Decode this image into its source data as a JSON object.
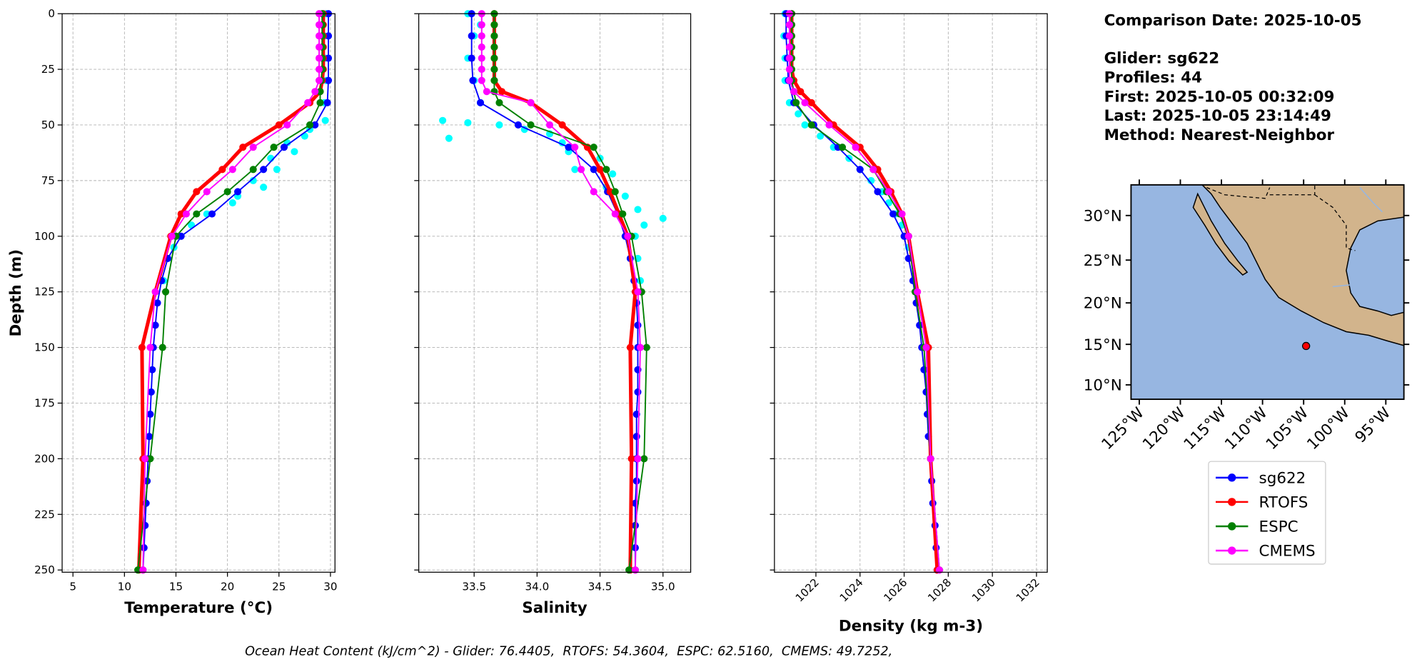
{
  "figure": {
    "comparison": "Comparison Date: 2025-10-05",
    "info_lines": [
      "Glider: sg622",
      "Profiles: 44",
      "First: 2025-10-05 00:32:09",
      "Last: 2025-10-05 23:14:49",
      "Method: Nearest-Neighbor"
    ],
    "footer": "Ocean Heat Content (kJ/cm^2) - Glider: 76.4405,  RTOFS: 54.3604,  ESPC: 62.5160,  CMEMS: 49.7252,"
  },
  "chart_data": [
    {
      "type": "line",
      "x_label": "Temperature (°C)",
      "y_label": "Depth (m)",
      "grid": true,
      "show_ytick_labels": true,
      "xlim": [
        3.95,
        30.44
      ],
      "xticks": [
        5,
        10,
        15,
        20,
        25,
        30
      ],
      "ylim": [
        0,
        251
      ],
      "yticks": [
        0,
        25,
        50,
        75,
        100,
        125,
        150,
        175,
        200,
        225,
        250
      ],
      "series": [
        {
          "type": "scatter",
          "color": "#00ffff",
          "y": [
            0,
            10,
            20,
            30,
            40,
            48,
            52,
            55,
            58,
            62,
            65,
            70,
            75,
            78,
            82,
            85,
            90,
            95,
            100,
            105,
            110,
            120
          ],
          "values": [
            29.6,
            29.4,
            29.5,
            29.6,
            29.4,
            29.5,
            28.0,
            27.5,
            25.8,
            26.5,
            24.2,
            24.8,
            22.5,
            23.5,
            21.0,
            20.5,
            18.0,
            16.5,
            15.0,
            14.8,
            14.2,
            13.8
          ]
        },
        {
          "name": "sg622",
          "color": "#0000ff",
          "width": 1.5,
          "y": [
            0,
            10,
            20,
            30,
            40,
            50,
            60,
            70,
            80,
            90,
            100,
            110,
            120,
            130,
            140,
            150,
            160,
            170,
            180,
            190,
            200,
            210,
            220,
            230,
            240,
            250
          ],
          "values": [
            29.8,
            29.8,
            29.8,
            29.8,
            29.7,
            28.5,
            25.5,
            23.5,
            21.0,
            18.5,
            15.5,
            14.2,
            13.6,
            13.2,
            13.0,
            12.8,
            12.7,
            12.6,
            12.5,
            12.4,
            12.3,
            12.2,
            12.1,
            12.0,
            11.9,
            11.8
          ]
        },
        {
          "name": "RTOFS",
          "color": "#ff0000",
          "width": 4,
          "y": [
            0,
            5,
            10,
            15,
            20,
            25,
            30,
            35,
            40,
            50,
            60,
            70,
            80,
            90,
            100,
            125,
            150,
            200,
            250
          ],
          "values": [
            29.3,
            29.3,
            29.3,
            29.3,
            29.3,
            29.3,
            29.2,
            29.0,
            28.0,
            25.0,
            21.5,
            19.5,
            17.0,
            15.5,
            14.5,
            13.0,
            11.7,
            11.8,
            11.4
          ]
        },
        {
          "name": "ESPC",
          "color": "#008000",
          "width": 1.5,
          "y": [
            0,
            5,
            10,
            15,
            20,
            25,
            30,
            35,
            40,
            50,
            60,
            70,
            80,
            90,
            100,
            125,
            150,
            200,
            250
          ],
          "values": [
            29.2,
            29.2,
            29.2,
            29.2,
            29.2,
            29.2,
            29.1,
            29.0,
            29.0,
            28.0,
            24.5,
            22.5,
            20.0,
            17.0,
            15.0,
            14.0,
            13.7,
            12.5,
            11.3
          ]
        },
        {
          "name": "CMEMS",
          "color": "#ff00ff",
          "width": 1.5,
          "y": [
            0,
            5,
            10,
            15,
            20,
            25,
            30,
            35,
            40,
            50,
            60,
            70,
            80,
            90,
            100,
            125,
            150,
            200,
            250
          ],
          "values": [
            28.9,
            28.9,
            28.9,
            28.9,
            28.9,
            28.9,
            28.9,
            28.5,
            27.8,
            25.8,
            22.5,
            20.5,
            18.0,
            16.0,
            14.6,
            13.0,
            12.5,
            12.0,
            11.8
          ]
        }
      ]
    },
    {
      "type": "line",
      "x_label": "Salinity",
      "grid": true,
      "show_ytick_labels": false,
      "xlim": [
        33.06,
        35.22
      ],
      "xticks": [
        33.5,
        {
          "value": 34,
          "label": "34.0"
        },
        34.5,
        {
          "value": 35,
          "label": "35.0"
        }
      ],
      "ylim": [
        0,
        251
      ],
      "yticks": [
        0,
        25,
        50,
        75,
        100,
        125,
        150,
        175,
        200,
        225,
        250
      ],
      "series": [
        {
          "type": "scatter",
          "color": "#00ffff",
          "y": [
            0,
            5,
            10,
            20,
            30,
            40,
            48,
            49,
            50,
            52,
            54,
            56,
            58,
            62,
            65,
            70,
            72,
            78,
            82,
            88,
            92,
            95,
            100,
            110,
            120
          ],
          "values": [
            33.45,
            33.55,
            33.5,
            33.45,
            33.5,
            33.55,
            33.25,
            33.45,
            33.7,
            33.9,
            34.1,
            33.3,
            34.2,
            34.25,
            34.5,
            34.3,
            34.6,
            34.55,
            34.7,
            34.8,
            35.0,
            34.85,
            34.78,
            34.8,
            34.82
          ]
        },
        {
          "color": "#0000ff",
          "width": 1.5,
          "y": [
            0,
            10,
            20,
            30,
            40,
            50,
            60,
            70,
            80,
            90,
            100,
            110,
            120,
            130,
            140,
            150,
            160,
            170,
            180,
            190,
            200,
            210,
            220,
            230,
            240,
            250
          ],
          "values": [
            33.48,
            33.48,
            33.48,
            33.49,
            33.55,
            33.85,
            34.25,
            34.45,
            34.56,
            34.64,
            34.7,
            34.74,
            34.77,
            34.79,
            34.8,
            34.8,
            34.8,
            34.8,
            34.79,
            34.79,
            34.79,
            34.79,
            34.78,
            34.78,
            34.78,
            34.78
          ]
        },
        {
          "color": "#ff0000",
          "width": 4,
          "y": [
            0,
            5,
            10,
            15,
            20,
            25,
            30,
            35,
            40,
            50,
            60,
            70,
            80,
            90,
            100,
            125,
            150,
            200,
            250
          ],
          "values": [
            33.66,
            33.66,
            33.66,
            33.66,
            33.66,
            33.66,
            33.66,
            33.72,
            33.95,
            34.2,
            34.4,
            34.5,
            34.58,
            34.65,
            34.72,
            34.78,
            34.74,
            34.75,
            34.74
          ]
        },
        {
          "color": "#008000",
          "width": 1.5,
          "y": [
            0,
            5,
            10,
            15,
            20,
            25,
            30,
            35,
            40,
            50,
            60,
            70,
            80,
            90,
            100,
            125,
            150,
            200,
            250
          ],
          "values": [
            33.66,
            33.66,
            33.66,
            33.66,
            33.66,
            33.66,
            33.66,
            33.66,
            33.7,
            33.95,
            34.45,
            34.55,
            34.62,
            34.68,
            34.75,
            34.83,
            34.87,
            34.85,
            34.73
          ]
        },
        {
          "color": "#ff00ff",
          "width": 1.5,
          "y": [
            0,
            5,
            10,
            15,
            20,
            25,
            30,
            35,
            40,
            50,
            60,
            70,
            80,
            90,
            100,
            125,
            150,
            200,
            250
          ],
          "values": [
            33.56,
            33.56,
            33.56,
            33.56,
            33.56,
            33.56,
            33.56,
            33.6,
            33.95,
            34.1,
            34.3,
            34.35,
            34.45,
            34.62,
            34.72,
            34.8,
            34.82,
            34.8,
            34.78
          ]
        }
      ]
    },
    {
      "type": "line",
      "x_label": "Density (kg m-3)",
      "grid": true,
      "show_ytick_labels": false,
      "xtick_rotation": 45,
      "xlim": [
        1020.12,
        1032.49
      ],
      "xticks": [
        1022,
        1024,
        1026,
        1028,
        1030,
        1032
      ],
      "ylim": [
        0,
        251
      ],
      "yticks": [
        0,
        25,
        50,
        75,
        100,
        125,
        150,
        175,
        200,
        225,
        250
      ],
      "series": [
        {
          "type": "scatter",
          "color": "#00ffff",
          "y": [
            0,
            10,
            20,
            30,
            40,
            45,
            50,
            55,
            60,
            65,
            70,
            75,
            80,
            85,
            90,
            95,
            100,
            105
          ],
          "values": [
            1020.6,
            1020.55,
            1020.6,
            1020.6,
            1020.8,
            1021.2,
            1021.5,
            1022.2,
            1022.8,
            1023.5,
            1024.0,
            1024.5,
            1025.0,
            1025.3,
            1025.6,
            1025.9,
            1026.1,
            1026.2
          ]
        },
        {
          "color": "#0000ff",
          "width": 1.5,
          "y": [
            0,
            10,
            20,
            30,
            40,
            50,
            60,
            70,
            80,
            90,
            100,
            110,
            120,
            130,
            140,
            150,
            160,
            170,
            180,
            190,
            200,
            210,
            220,
            230,
            240,
            250
          ],
          "values": [
            1020.65,
            1020.65,
            1020.7,
            1020.75,
            1021.0,
            1021.9,
            1023.0,
            1024.0,
            1024.8,
            1025.5,
            1026.0,
            1026.2,
            1026.4,
            1026.55,
            1026.7,
            1026.8,
            1026.9,
            1027.0,
            1027.05,
            1027.1,
            1027.2,
            1027.25,
            1027.3,
            1027.4,
            1027.45,
            1027.5
          ]
        },
        {
          "color": "#ff0000",
          "width": 4,
          "y": [
            0,
            5,
            10,
            15,
            20,
            25,
            30,
            35,
            40,
            50,
            60,
            70,
            80,
            90,
            100,
            125,
            150,
            200,
            250
          ],
          "values": [
            1020.9,
            1020.9,
            1020.9,
            1020.9,
            1020.9,
            1020.9,
            1021.0,
            1021.3,
            1021.8,
            1022.8,
            1024.0,
            1024.8,
            1025.4,
            1025.9,
            1026.2,
            1026.6,
            1027.1,
            1027.2,
            1027.5
          ]
        },
        {
          "color": "#008000",
          "width": 1.5,
          "y": [
            0,
            5,
            10,
            15,
            20,
            25,
            30,
            35,
            40,
            50,
            60,
            70,
            80,
            90,
            100,
            125,
            150,
            200,
            250
          ],
          "values": [
            1020.9,
            1020.9,
            1020.9,
            1020.9,
            1020.9,
            1020.9,
            1020.9,
            1021.0,
            1021.1,
            1021.8,
            1023.2,
            1024.6,
            1025.2,
            1025.8,
            1026.2,
            1026.5,
            1026.9,
            1027.2,
            1027.6
          ]
        },
        {
          "color": "#ff00ff",
          "width": 1.5,
          "y": [
            0,
            5,
            10,
            15,
            20,
            25,
            30,
            35,
            40,
            50,
            60,
            70,
            80,
            90,
            100,
            125,
            150,
            200,
            250
          ],
          "values": [
            1020.8,
            1020.8,
            1020.8,
            1020.8,
            1020.8,
            1020.8,
            1020.8,
            1021.0,
            1021.5,
            1022.6,
            1023.8,
            1024.6,
            1025.3,
            1025.9,
            1026.2,
            1026.6,
            1027.0,
            1027.2,
            1027.6
          ]
        }
      ]
    },
    {
      "type": "map",
      "projection": "mercator",
      "ocean_color": "#97b6e1",
      "land_color": "#d2b48c",
      "xlim": [
        -126,
        -92.8
      ],
      "ylim": [
        8.2,
        33.3
      ],
      "xtick_rotation": 45,
      "xticks": [
        {
          "value": -125,
          "label": "125°W"
        },
        {
          "value": -120,
          "label": "120°W"
        },
        {
          "value": -115,
          "label": "115°W"
        },
        {
          "value": -110,
          "label": "110°W"
        },
        {
          "value": -105,
          "label": "105°W"
        },
        {
          "value": -100,
          "label": "100°W"
        },
        {
          "value": -95,
          "label": "95°W"
        }
      ],
      "yticks": [
        {
          "value": 10,
          "label": "10°N"
        },
        {
          "value": 15,
          "label": "15°N"
        },
        {
          "value": 20,
          "label": "20°N"
        },
        {
          "value": 25,
          "label": "25°N"
        },
        {
          "value": 30,
          "label": "30°N"
        }
      ],
      "marker": {
        "lon": -104.7,
        "lat": 14.8,
        "color": "#ff0000"
      }
    }
  ]
}
